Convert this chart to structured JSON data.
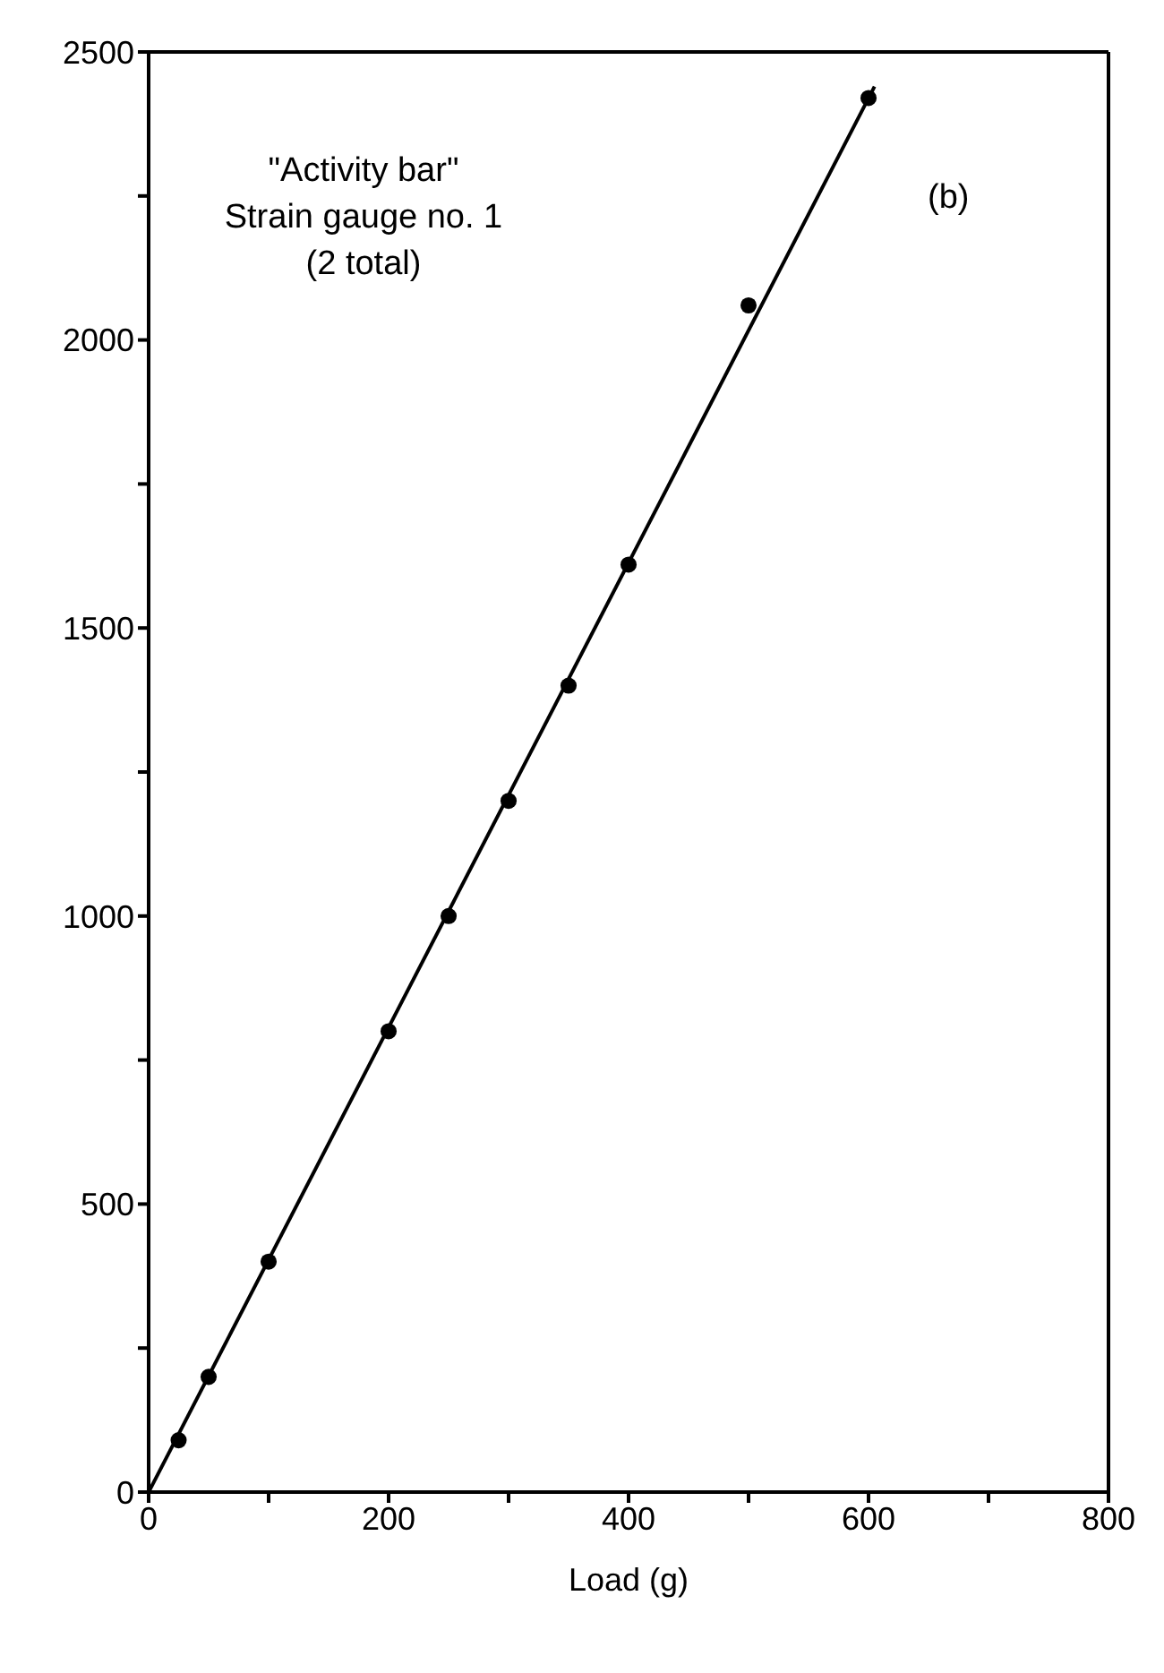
{
  "chart_data": {
    "type": "scatter",
    "xlabel": "Load (g)",
    "xlim": [
      0,
      800
    ],
    "xticks": [
      0,
      {
        "value": 100,
        "label": null
      },
      200,
      {
        "value": 300,
        "label": null
      },
      400,
      {
        "value": 500,
        "label": null
      },
      600,
      {
        "value": 700,
        "label": null
      },
      800
    ],
    "ylim": [
      0,
      2500
    ],
    "yticks": [
      0,
      {
        "value": 250,
        "label": null
      },
      500,
      {
        "value": 750,
        "label": null
      },
      1000,
      {
        "value": 1250,
        "label": null
      },
      1500,
      {
        "value": 1750,
        "label": null
      },
      2000,
      {
        "value": 2250,
        "label": null
      },
      2500
    ],
    "grid": false,
    "marker": "circle",
    "series": [
      {
        "color": "#000000",
        "x": [
          25,
          50,
          100,
          200,
          250,
          300,
          350,
          400,
          500,
          600
        ],
        "values": [
          90,
          200,
          400,
          800,
          1000,
          1200,
          1400,
          1610,
          2060,
          2420
        ]
      },
      {
        "type": "line",
        "color": "#000000",
        "x": [
          0,
          605
        ],
        "values": [
          0,
          2440
        ],
        "marker": "none",
        "line_style": "solid"
      }
    ],
    "annotations": [
      "\"Activity bar\"",
      "Strain gauge no. 1",
      "(2 total)",
      "(b)"
    ]
  }
}
